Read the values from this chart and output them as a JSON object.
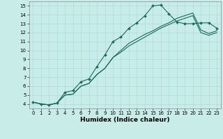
{
  "xlabel": "Humidex (Indice chaleur)",
  "xlim": [
    -0.5,
    23.5
  ],
  "ylim": [
    3.5,
    15.5
  ],
  "xticks": [
    0,
    1,
    2,
    3,
    4,
    5,
    6,
    7,
    8,
    9,
    10,
    11,
    12,
    13,
    14,
    15,
    16,
    17,
    18,
    19,
    20,
    21,
    22,
    23
  ],
  "yticks": [
    4,
    5,
    6,
    7,
    8,
    9,
    10,
    11,
    12,
    13,
    14,
    15
  ],
  "bg_color": "#c8ece8",
  "line_color": "#1a6b5a",
  "curve1_x": [
    0,
    1,
    2,
    3,
    4,
    5,
    6,
    7,
    8,
    9,
    10,
    11,
    12,
    13,
    14,
    15,
    16,
    17,
    18,
    19,
    20,
    21,
    22,
    23
  ],
  "curve1_y": [
    4.2,
    4.0,
    3.9,
    4.1,
    5.3,
    5.5,
    6.5,
    6.8,
    8.2,
    9.5,
    11.0,
    11.5,
    12.5,
    13.1,
    13.9,
    15.0,
    15.1,
    14.1,
    13.2,
    13.0,
    13.0,
    13.1,
    13.1,
    12.5
  ],
  "curve2_x": [
    0,
    1,
    2,
    3,
    4,
    5,
    6,
    7,
    8,
    9,
    10,
    11,
    12,
    13,
    14,
    15,
    16,
    17,
    18,
    19,
    20,
    21,
    22,
    23
  ],
  "curve2_y": [
    4.2,
    4.0,
    3.9,
    4.1,
    5.0,
    5.1,
    6.0,
    6.3,
    7.3,
    8.0,
    9.2,
    10.0,
    10.8,
    11.3,
    11.8,
    12.2,
    12.7,
    13.1,
    13.6,
    13.9,
    14.2,
    12.3,
    11.9,
    12.2
  ],
  "curve3_x": [
    0,
    1,
    2,
    3,
    4,
    5,
    6,
    7,
    8,
    9,
    10,
    11,
    12,
    13,
    14,
    15,
    16,
    17,
    18,
    19,
    20,
    21,
    22,
    23
  ],
  "curve3_y": [
    4.2,
    4.0,
    3.9,
    4.1,
    5.0,
    5.1,
    6.0,
    6.3,
    7.3,
    8.0,
    9.2,
    9.8,
    10.5,
    11.0,
    11.5,
    12.0,
    12.5,
    12.9,
    13.3,
    13.6,
    13.9,
    12.0,
    11.7,
    12.0
  ],
  "linewidth": 0.8,
  "marker": "D",
  "marker_size": 2.0,
  "grid_color": "#a8d8d4",
  "tick_fontsize": 5.0,
  "xlabel_fontsize": 6.5
}
